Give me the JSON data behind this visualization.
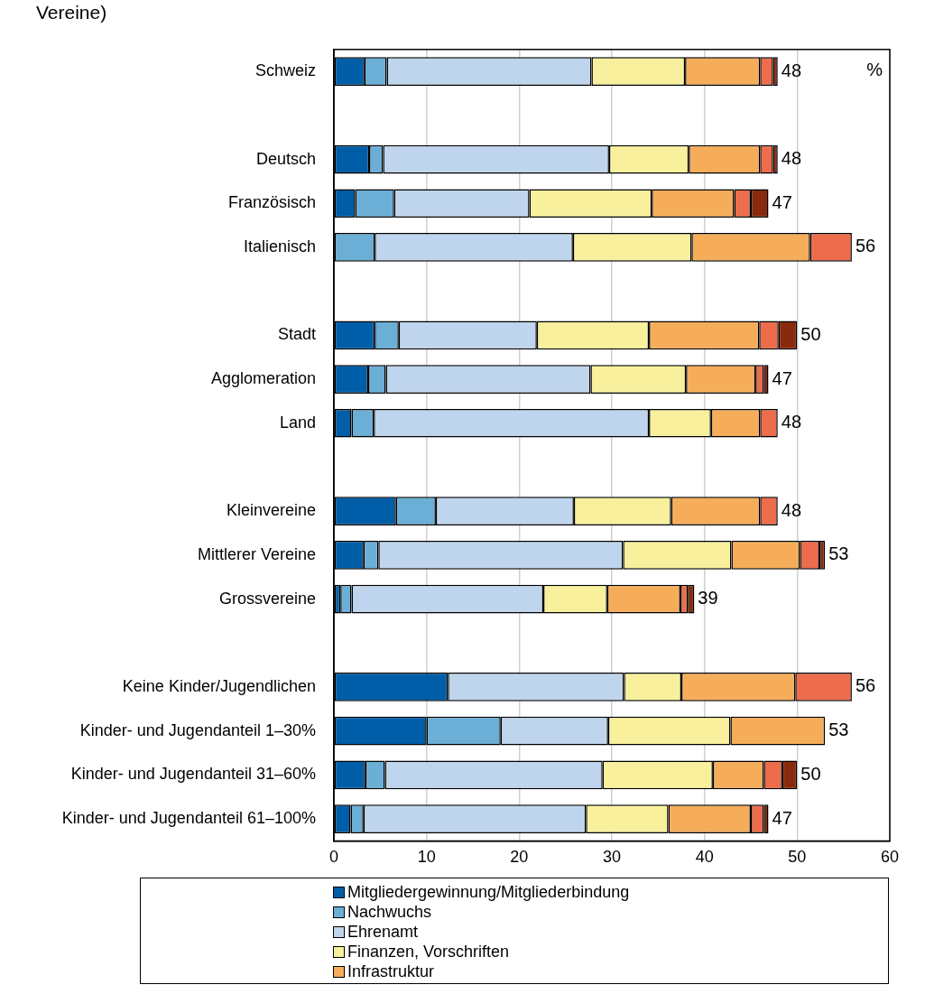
{
  "chart_data": {
    "type": "bar",
    "orientation": "horizontal",
    "stacked": true,
    "title": "Vereine)",
    "categories": [
      "Schweiz",
      null,
      "Deutsch",
      "Französisch",
      "Italienisch",
      null,
      "Stadt",
      "Agglomeration",
      "Land",
      null,
      "Kleinvereine",
      "Mittlerer Vereine",
      "Grossvereine",
      null,
      "Keine Kinder/Jugendlichen",
      "Kinder- und Jugendanteil 1–30%",
      "Kinder- und Jugendanteil 31–60%",
      "Kinder- und Jugendanteil 61–100%"
    ],
    "series": [
      {
        "name": "Mitgliedergewinnung/Mitgliederbindung",
        "color": "#005ea8",
        "values": [
          3.3,
          null,
          3.8,
          2.3,
          0,
          null,
          4.4,
          3.7,
          1.9,
          null,
          6.7,
          3.2,
          0.7,
          null,
          12.3,
          10.0,
          3.4,
          1.8
        ]
      },
      {
        "name": "Nachwuchs",
        "color": "#6baed6",
        "values": [
          2.4,
          null,
          1.5,
          4.2,
          4.4,
          null,
          2.6,
          1.9,
          2.4,
          null,
          4.3,
          1.6,
          1.2,
          null,
          0,
          8.0,
          2.1,
          1.4
        ]
      },
      {
        "name": "Ehrenamt",
        "color": "#bfd5ed",
        "values": [
          22.1,
          null,
          24.4,
          14.6,
          21.4,
          null,
          14.9,
          22.1,
          29.7,
          null,
          14.9,
          26.4,
          20.7,
          null,
          19.0,
          11.6,
          23.5,
          24.0
        ]
      },
      {
        "name": "Finanzen, Vorschriften",
        "color": "#f8f09c",
        "values": [
          10.1,
          null,
          8.6,
          13.2,
          12.8,
          null,
          12.1,
          10.3,
          6.7,
          null,
          10.5,
          11.7,
          6.9,
          null,
          6.2,
          13.2,
          11.9,
          8.9
        ]
      },
      {
        "name": "Infrastruktur",
        "color": "#f6ad5a",
        "values": [
          8.1,
          null,
          7.7,
          8.9,
          12.8,
          null,
          11.9,
          7.5,
          5.3,
          null,
          9.6,
          7.4,
          7.9,
          null,
          12.3,
          10.2,
          5.5,
          8.9
        ]
      },
      {
        "color": "#ec6c4c",
        "values": [
          1.4,
          null,
          1.4,
          1.8,
          4.5,
          null,
          2.1,
          0.9,
          1.9,
          null,
          1.9,
          2.1,
          0.8,
          null,
          6.1,
          0,
          2.0,
          1.4
        ]
      },
      {
        "color": "#8a2a0c",
        "values": [
          0.5,
          null,
          0.5,
          1.9,
          0,
          null,
          2.0,
          0.5,
          0,
          null,
          0,
          0.6,
          0.7,
          null,
          0,
          0,
          1.6,
          0.5
        ]
      }
    ],
    "totals": [
      "48",
      null,
      "48",
      "47",
      "56",
      null,
      "50",
      "47",
      "48",
      null,
      "48",
      "53",
      "39",
      null,
      "56",
      "53",
      "50",
      "47"
    ],
    "xlim": [
      0,
      60
    ],
    "xticks": [
      0,
      10,
      20,
      30,
      40,
      50,
      60
    ],
    "annotations": [
      "%"
    ],
    "grid": "x",
    "legend": "bottom"
  }
}
